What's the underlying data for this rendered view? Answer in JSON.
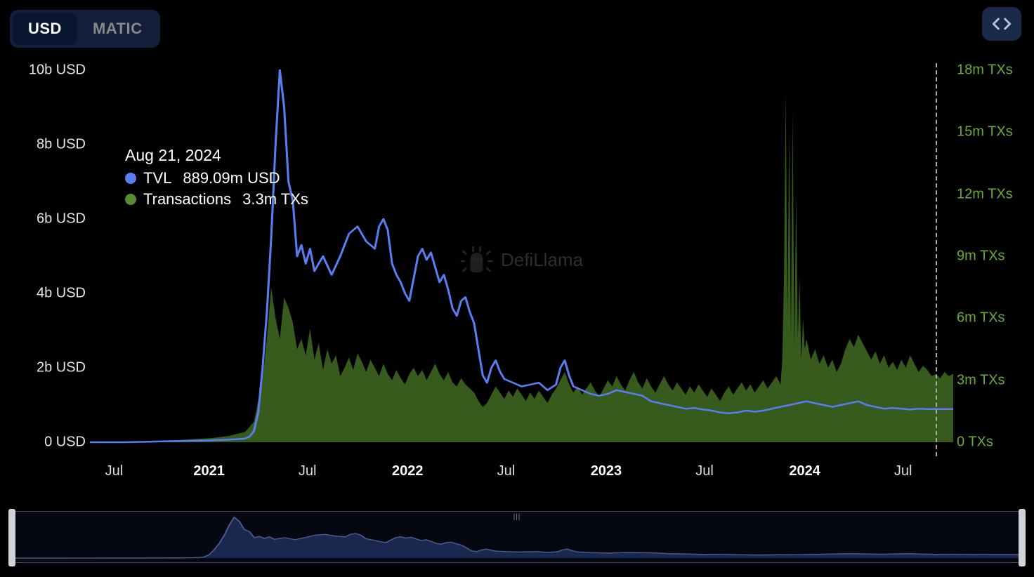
{
  "currency_toggle": {
    "active": "USD",
    "options": [
      "USD",
      "MATIC"
    ]
  },
  "embed_button": {
    "title": "Embed"
  },
  "watermark": {
    "text": "DefiLlama"
  },
  "legend": {
    "date": "Aug 21, 2024",
    "series": [
      {
        "name": "TVL",
        "value": "889.09m USD",
        "color": "#5a7ef2"
      },
      {
        "name": "Transactions",
        "value": "3.3m TXs",
        "color": "#5a8a33"
      }
    ]
  },
  "chart": {
    "type": "line+area",
    "background_color": "#000000",
    "line_color": "#5a7ef2",
    "line_width": 2.5,
    "area_color": "#3f6b22",
    "area_opacity": 0.85,
    "cursor_line_color": "#aaaaaa",
    "x_axis": {
      "ticks": [
        {
          "t": 0.028,
          "label": "Jul",
          "bold": false
        },
        {
          "t": 0.138,
          "label": "2021",
          "bold": true
        },
        {
          "t": 0.252,
          "label": "Jul",
          "bold": false
        },
        {
          "t": 0.368,
          "label": "2022",
          "bold": true
        },
        {
          "t": 0.482,
          "label": "Jul",
          "bold": false
        },
        {
          "t": 0.598,
          "label": "2023",
          "bold": true
        },
        {
          "t": 0.712,
          "label": "Jul",
          "bold": false
        },
        {
          "t": 0.828,
          "label": "2024",
          "bold": true
        },
        {
          "t": 0.942,
          "label": "Jul",
          "bold": false
        }
      ],
      "label_color": "#dddddd",
      "label_fontsize": 20
    },
    "y_left": {
      "unit": "USD",
      "min": 0,
      "max": 10,
      "ticks": [
        {
          "v": 0,
          "label": "0 USD"
        },
        {
          "v": 2,
          "label": "2b USD"
        },
        {
          "v": 4,
          "label": "4b USD"
        },
        {
          "v": 6,
          "label": "6b USD"
        },
        {
          "v": 8,
          "label": "8b USD"
        },
        {
          "v": 10,
          "label": "10b USD"
        }
      ],
      "label_color": "#e6e6e6",
      "label_fontsize": 20
    },
    "y_right": {
      "unit": "TXs",
      "min": 0,
      "max": 18,
      "ticks": [
        {
          "v": 0,
          "label": "0 TXs"
        },
        {
          "v": 3,
          "label": "3m TXs"
        },
        {
          "v": 6,
          "label": "6m TXs"
        },
        {
          "v": 9,
          "label": "9m TXs"
        },
        {
          "v": 12,
          "label": "12m TXs"
        },
        {
          "v": 15,
          "label": "15m TXs"
        },
        {
          "v": 18,
          "label": "18m TXs"
        }
      ],
      "label_color": "#6aaa3a",
      "label_fontsize": 20
    },
    "cursor_t": 0.98,
    "tvl": [
      [
        0.0,
        0.0
      ],
      [
        0.02,
        0.0
      ],
      [
        0.04,
        0.0
      ],
      [
        0.06,
        0.01
      ],
      [
        0.08,
        0.02
      ],
      [
        0.1,
        0.03
      ],
      [
        0.12,
        0.04
      ],
      [
        0.14,
        0.05
      ],
      [
        0.16,
        0.07
      ],
      [
        0.17,
        0.08
      ],
      [
        0.18,
        0.1
      ],
      [
        0.185,
        0.15
      ],
      [
        0.19,
        0.3
      ],
      [
        0.195,
        0.8
      ],
      [
        0.2,
        2.0
      ],
      [
        0.205,
        3.5
      ],
      [
        0.21,
        5.5
      ],
      [
        0.215,
        8.0
      ],
      [
        0.22,
        10.0
      ],
      [
        0.225,
        9.0
      ],
      [
        0.23,
        7.0
      ],
      [
        0.235,
        6.5
      ],
      [
        0.24,
        5.0
      ],
      [
        0.245,
        5.3
      ],
      [
        0.25,
        4.8
      ],
      [
        0.255,
        5.2
      ],
      [
        0.26,
        4.6
      ],
      [
        0.27,
        5.0
      ],
      [
        0.28,
        4.5
      ],
      [
        0.29,
        5.0
      ],
      [
        0.3,
        5.6
      ],
      [
        0.31,
        5.8
      ],
      [
        0.32,
        5.4
      ],
      [
        0.33,
        5.2
      ],
      [
        0.335,
        5.8
      ],
      [
        0.34,
        6.0
      ],
      [
        0.345,
        5.7
      ],
      [
        0.35,
        4.8
      ],
      [
        0.355,
        4.5
      ],
      [
        0.36,
        4.3
      ],
      [
        0.365,
        4.0
      ],
      [
        0.37,
        3.8
      ],
      [
        0.375,
        4.4
      ],
      [
        0.38,
        5.0
      ],
      [
        0.385,
        5.2
      ],
      [
        0.39,
        4.9
      ],
      [
        0.395,
        5.1
      ],
      [
        0.4,
        4.7
      ],
      [
        0.405,
        4.3
      ],
      [
        0.41,
        4.5
      ],
      [
        0.415,
        4.1
      ],
      [
        0.42,
        3.6
      ],
      [
        0.425,
        3.4
      ],
      [
        0.43,
        3.8
      ],
      [
        0.435,
        3.9
      ],
      [
        0.44,
        3.5
      ],
      [
        0.445,
        3.2
      ],
      [
        0.45,
        2.5
      ],
      [
        0.455,
        1.8
      ],
      [
        0.46,
        1.6
      ],
      [
        0.465,
        2.0
      ],
      [
        0.47,
        2.2
      ],
      [
        0.475,
        1.9
      ],
      [
        0.48,
        1.7
      ],
      [
        0.49,
        1.6
      ],
      [
        0.5,
        1.5
      ],
      [
        0.51,
        1.55
      ],
      [
        0.52,
        1.6
      ],
      [
        0.53,
        1.4
      ],
      [
        0.54,
        1.55
      ],
      [
        0.545,
        2.0
      ],
      [
        0.55,
        2.2
      ],
      [
        0.555,
        1.8
      ],
      [
        0.56,
        1.5
      ],
      [
        0.57,
        1.4
      ],
      [
        0.58,
        1.3
      ],
      [
        0.59,
        1.25
      ],
      [
        0.6,
        1.3
      ],
      [
        0.61,
        1.4
      ],
      [
        0.62,
        1.35
      ],
      [
        0.63,
        1.3
      ],
      [
        0.64,
        1.25
      ],
      [
        0.65,
        1.1
      ],
      [
        0.66,
        1.05
      ],
      [
        0.67,
        1.0
      ],
      [
        0.68,
        0.95
      ],
      [
        0.69,
        0.9
      ],
      [
        0.7,
        0.92
      ],
      [
        0.71,
        0.88
      ],
      [
        0.72,
        0.85
      ],
      [
        0.73,
        0.8
      ],
      [
        0.74,
        0.78
      ],
      [
        0.75,
        0.8
      ],
      [
        0.76,
        0.85
      ],
      [
        0.77,
        0.82
      ],
      [
        0.78,
        0.85
      ],
      [
        0.79,
        0.9
      ],
      [
        0.8,
        0.95
      ],
      [
        0.81,
        1.0
      ],
      [
        0.82,
        1.05
      ],
      [
        0.83,
        1.1
      ],
      [
        0.84,
        1.05
      ],
      [
        0.85,
        1.0
      ],
      [
        0.86,
        0.95
      ],
      [
        0.87,
        1.0
      ],
      [
        0.88,
        1.05
      ],
      [
        0.89,
        1.1
      ],
      [
        0.9,
        1.0
      ],
      [
        0.91,
        0.95
      ],
      [
        0.92,
        0.9
      ],
      [
        0.93,
        0.92
      ],
      [
        0.94,
        0.9
      ],
      [
        0.95,
        0.88
      ],
      [
        0.96,
        0.9
      ],
      [
        0.97,
        0.89
      ],
      [
        0.98,
        0.89
      ],
      [
        0.99,
        0.89
      ],
      [
        1.0,
        0.89
      ]
    ],
    "txs": [
      [
        0.0,
        0.0
      ],
      [
        0.05,
        0.01
      ],
      [
        0.08,
        0.05
      ],
      [
        0.1,
        0.1
      ],
      [
        0.12,
        0.15
      ],
      [
        0.14,
        0.2
      ],
      [
        0.16,
        0.3
      ],
      [
        0.18,
        0.5
      ],
      [
        0.19,
        1.0
      ],
      [
        0.2,
        3.0
      ],
      [
        0.205,
        5.0
      ],
      [
        0.21,
        7.5
      ],
      [
        0.215,
        6.0
      ],
      [
        0.22,
        5.0
      ],
      [
        0.225,
        7.0
      ],
      [
        0.23,
        6.5
      ],
      [
        0.235,
        5.8
      ],
      [
        0.24,
        4.5
      ],
      [
        0.245,
        5.0
      ],
      [
        0.25,
        4.2
      ],
      [
        0.255,
        5.5
      ],
      [
        0.26,
        4.0
      ],
      [
        0.265,
        4.8
      ],
      [
        0.27,
        3.5
      ],
      [
        0.275,
        4.5
      ],
      [
        0.28,
        3.8
      ],
      [
        0.285,
        4.2
      ],
      [
        0.29,
        3.2
      ],
      [
        0.295,
        3.6
      ],
      [
        0.3,
        4.1
      ],
      [
        0.305,
        3.5
      ],
      [
        0.31,
        4.3
      ],
      [
        0.315,
        3.9
      ],
      [
        0.32,
        3.4
      ],
      [
        0.325,
        4.0
      ],
      [
        0.33,
        3.6
      ],
      [
        0.335,
        3.2
      ],
      [
        0.34,
        3.8
      ],
      [
        0.345,
        3.3
      ],
      [
        0.35,
        3.0
      ],
      [
        0.355,
        3.5
      ],
      [
        0.36,
        3.1
      ],
      [
        0.365,
        2.8
      ],
      [
        0.37,
        3.3
      ],
      [
        0.375,
        3.6
      ],
      [
        0.38,
        3.2
      ],
      [
        0.385,
        3.5
      ],
      [
        0.39,
        3.0
      ],
      [
        0.395,
        3.4
      ],
      [
        0.4,
        3.8
      ],
      [
        0.405,
        3.3
      ],
      [
        0.41,
        3.0
      ],
      [
        0.415,
        3.4
      ],
      [
        0.42,
        2.9
      ],
      [
        0.425,
        2.7
      ],
      [
        0.43,
        3.1
      ],
      [
        0.435,
        2.8
      ],
      [
        0.44,
        2.6
      ],
      [
        0.445,
        2.4
      ],
      [
        0.45,
        2.0
      ],
      [
        0.455,
        1.7
      ],
      [
        0.46,
        1.9
      ],
      [
        0.465,
        2.3
      ],
      [
        0.47,
        2.7
      ],
      [
        0.475,
        2.4
      ],
      [
        0.48,
        2.1
      ],
      [
        0.485,
        2.5
      ],
      [
        0.49,
        2.2
      ],
      [
        0.495,
        2.6
      ],
      [
        0.5,
        2.3
      ],
      [
        0.505,
        2.0
      ],
      [
        0.51,
        2.4
      ],
      [
        0.515,
        2.1
      ],
      [
        0.52,
        2.5
      ],
      [
        0.525,
        2.2
      ],
      [
        0.53,
        1.9
      ],
      [
        0.535,
        2.3
      ],
      [
        0.54,
        2.6
      ],
      [
        0.545,
        3.0
      ],
      [
        0.55,
        3.4
      ],
      [
        0.555,
        2.8
      ],
      [
        0.56,
        2.4
      ],
      [
        0.565,
        2.7
      ],
      [
        0.57,
        2.3
      ],
      [
        0.575,
        2.6
      ],
      [
        0.58,
        2.9
      ],
      [
        0.585,
        2.5
      ],
      [
        0.59,
        2.2
      ],
      [
        0.595,
        2.6
      ],
      [
        0.6,
        3.0
      ],
      [
        0.605,
        2.7
      ],
      [
        0.61,
        3.2
      ],
      [
        0.615,
        2.8
      ],
      [
        0.62,
        2.5
      ],
      [
        0.625,
        3.0
      ],
      [
        0.63,
        3.4
      ],
      [
        0.635,
        2.9
      ],
      [
        0.64,
        2.6
      ],
      [
        0.645,
        3.1
      ],
      [
        0.65,
        2.7
      ],
      [
        0.655,
        2.4
      ],
      [
        0.66,
        2.8
      ],
      [
        0.665,
        3.2
      ],
      [
        0.67,
        2.8
      ],
      [
        0.675,
        2.5
      ],
      [
        0.68,
        2.9
      ],
      [
        0.685,
        2.6
      ],
      [
        0.69,
        2.3
      ],
      [
        0.695,
        2.7
      ],
      [
        0.7,
        2.4
      ],
      [
        0.705,
        2.8
      ],
      [
        0.71,
        2.5
      ],
      [
        0.715,
        2.2
      ],
      [
        0.72,
        2.6
      ],
      [
        0.725,
        2.3
      ],
      [
        0.73,
        2.0
      ],
      [
        0.735,
        2.4
      ],
      [
        0.74,
        2.7
      ],
      [
        0.745,
        2.3
      ],
      [
        0.75,
        2.6
      ],
      [
        0.755,
        2.9
      ],
      [
        0.76,
        2.5
      ],
      [
        0.765,
        2.8
      ],
      [
        0.77,
        2.4
      ],
      [
        0.775,
        2.7
      ],
      [
        0.78,
        3.0
      ],
      [
        0.785,
        2.6
      ],
      [
        0.79,
        2.9
      ],
      [
        0.795,
        3.2
      ],
      [
        0.8,
        2.8
      ],
      [
        0.802,
        4.0
      ],
      [
        0.804,
        8.0
      ],
      [
        0.806,
        17.0
      ],
      [
        0.808,
        6.0
      ],
      [
        0.81,
        15.0
      ],
      [
        0.812,
        5.0
      ],
      [
        0.814,
        16.0
      ],
      [
        0.816,
        4.5
      ],
      [
        0.818,
        12.0
      ],
      [
        0.82,
        5.0
      ],
      [
        0.822,
        8.0
      ],
      [
        0.824,
        4.0
      ],
      [
        0.826,
        6.0
      ],
      [
        0.828,
        4.5
      ],
      [
        0.83,
        5.0
      ],
      [
        0.835,
        4.0
      ],
      [
        0.84,
        4.5
      ],
      [
        0.845,
        3.8
      ],
      [
        0.85,
        4.2
      ],
      [
        0.855,
        3.6
      ],
      [
        0.86,
        4.0
      ],
      [
        0.865,
        3.4
      ],
      [
        0.87,
        3.8
      ],
      [
        0.875,
        4.5
      ],
      [
        0.88,
        5.0
      ],
      [
        0.885,
        4.6
      ],
      [
        0.89,
        5.2
      ],
      [
        0.895,
        4.8
      ],
      [
        0.9,
        4.4
      ],
      [
        0.905,
        4.0
      ],
      [
        0.91,
        4.4
      ],
      [
        0.915,
        3.8
      ],
      [
        0.92,
        4.2
      ],
      [
        0.925,
        3.6
      ],
      [
        0.93,
        3.9
      ],
      [
        0.935,
        3.5
      ],
      [
        0.94,
        4.0
      ],
      [
        0.945,
        3.6
      ],
      [
        0.95,
        4.2
      ],
      [
        0.955,
        3.8
      ],
      [
        0.96,
        3.4
      ],
      [
        0.965,
        3.7
      ],
      [
        0.97,
        3.5
      ],
      [
        0.975,
        3.2
      ],
      [
        0.98,
        3.3
      ],
      [
        0.985,
        3.1
      ],
      [
        0.99,
        3.4
      ],
      [
        0.995,
        3.2
      ],
      [
        1.0,
        3.3
      ]
    ]
  },
  "brush": {
    "line_color": "#4a5a8a",
    "background": "#050810",
    "border_color": "#3a4560",
    "handle_color": "#d0d3d8"
  }
}
